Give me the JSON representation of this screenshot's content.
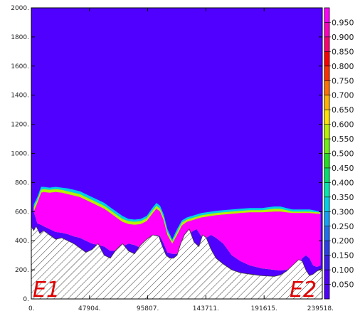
{
  "chart_data": {
    "type": "heatmap",
    "title": "",
    "xlabel": "",
    "ylabel": "",
    "xlim": [
      0,
      239518
    ],
    "ylim": [
      0,
      2000
    ],
    "x_ticks": [
      {
        "value": 0,
        "label": "0."
      },
      {
        "value": 47904,
        "label": "47904."
      },
      {
        "value": 95807,
        "label": "95807."
      },
      {
        "value": 143711,
        "label": "143711."
      },
      {
        "value": 191615,
        "label": "191615."
      },
      {
        "value": 239518,
        "label": "239518."
      }
    ],
    "y_ticks": [
      {
        "value": 0,
        "label": "0."
      },
      {
        "value": 200,
        "label": "200."
      },
      {
        "value": 400,
        "label": "400."
      },
      {
        "value": 600,
        "label": "600."
      },
      {
        "value": 800,
        "label": "800."
      },
      {
        "value": 1000,
        "label": "1000."
      },
      {
        "value": 1200,
        "label": "1200."
      },
      {
        "value": 1400,
        "label": "1400."
      },
      {
        "value": 1600,
        "label": "1600."
      },
      {
        "value": 1800,
        "label": "1800."
      },
      {
        "value": 2000,
        "label": "2000."
      }
    ],
    "background_value": 0.0,
    "end_labels": {
      "left": "E1",
      "right": "E2"
    },
    "colorbar": {
      "levels": [
        "0.050",
        "0.100",
        "0.150",
        "0.200",
        "0.250",
        "0.300",
        "0.350",
        "0.400",
        "0.450",
        "0.500",
        "0.550",
        "0.600",
        "0.650",
        "0.700",
        "0.750",
        "0.800",
        "0.850",
        "0.900",
        "0.950"
      ],
      "colors": [
        "#5000ff",
        "#3a1ef0",
        "#2a40e8",
        "#1e70f0",
        "#12a0f8",
        "#00d0e8",
        "#00e8b0",
        "#00e070",
        "#20e020",
        "#70ee10",
        "#b8f000",
        "#ffe000",
        "#ffb000",
        "#ff7000",
        "#ff3000",
        "#ff0000",
        "#ff0070",
        "#ff00c0",
        "#ff00ff"
      ],
      "min_color": "#5000ff"
    },
    "terrain": {
      "x": [
        0,
        2000,
        4000,
        7000,
        10000,
        15000,
        20000,
        25000,
        30000,
        35000,
        40000,
        45000,
        50000,
        55000,
        60000,
        65000,
        70000,
        75000,
        80000,
        85000,
        90000,
        95000,
        100000,
        105000,
        108000,
        111000,
        114000,
        117000,
        120000,
        123000,
        126000,
        130000,
        134000,
        138000,
        141000,
        144000,
        148000,
        152000,
        158000,
        165000,
        172000,
        180000,
        190000,
        200000,
        205000,
        210000,
        215000,
        220000,
        223000,
        226000,
        229000,
        232000,
        235000,
        239518
      ],
      "y": [
        500,
        470,
        500,
        450,
        470,
        440,
        410,
        420,
        400,
        380,
        350,
        320,
        340,
        380,
        300,
        280,
        340,
        380,
        330,
        310,
        370,
        410,
        440,
        430,
        360,
        300,
        280,
        280,
        300,
        380,
        440,
        480,
        390,
        360,
        440,
        420,
        340,
        280,
        240,
        200,
        180,
        170,
        160,
        155,
        165,
        190,
        230,
        270,
        260,
        200,
        160,
        170,
        190,
        210
      ],
      "fill": "#ffffff",
      "hatch_color": "#3a3a3a"
    },
    "bands": {
      "x": [
        2000,
        5000,
        8000,
        10000,
        15000,
        20000,
        25000,
        30000,
        35000,
        40000,
        45000,
        50000,
        55000,
        60000,
        65000,
        70000,
        75000,
        80000,
        85000,
        90000,
        95000,
        100000,
        103000,
        106000,
        109000,
        112000,
        116000,
        120000,
        124000,
        128000,
        132000,
        136000,
        140000,
        144000,
        148000,
        152000,
        158000,
        165000,
        172000,
        180000,
        190000,
        200000,
        205000,
        210000,
        215000,
        220000,
        223000,
        226000,
        229000,
        232000,
        235000,
        238000
      ],
      "bottom": [
        600,
        520,
        510,
        500,
        480,
        460,
        455,
        445,
        430,
        420,
        400,
        380,
        370,
        360,
        330,
        330,
        360,
        380,
        370,
        350,
        400,
        420,
        440,
        430,
        380,
        320,
        310,
        310,
        340,
        410,
        460,
        480,
        430,
        420,
        440,
        420,
        380,
        300,
        260,
        230,
        210,
        200,
        195,
        200,
        215,
        240,
        280,
        300,
        280,
        230,
        220,
        230
      ],
      "levels": [
        {
          "value": 0.05,
          "top": [
            680,
            720,
            790,
            790,
            780,
            785,
            780,
            775,
            770,
            760,
            740,
            720,
            700,
            680,
            650,
            620,
            590,
            570,
            560,
            565,
            590,
            650,
            680,
            660,
            600,
            500,
            430,
            500,
            560,
            580,
            590,
            600,
            610,
            615,
            615,
            620,
            630,
            630,
            640,
            640,
            640,
            650,
            650,
            640,
            630,
            630,
            630,
            630,
            630,
            625,
            620,
            615
          ]
        },
        {
          "value": 0.3,
          "top": [
            650,
            700,
            770,
            770,
            765,
            770,
            765,
            760,
            750,
            740,
            720,
            700,
            680,
            660,
            630,
            600,
            570,
            550,
            545,
            550,
            570,
            630,
            660,
            640,
            580,
            480,
            410,
            480,
            540,
            560,
            570,
            580,
            590,
            595,
            600,
            605,
            610,
            615,
            620,
            625,
            625,
            635,
            635,
            625,
            615,
            615,
            615,
            615,
            615,
            610,
            605,
            600
          ]
        },
        {
          "value": 0.55,
          "top": [
            630,
            680,
            750,
            755,
            750,
            755,
            750,
            740,
            730,
            720,
            700,
            680,
            660,
            640,
            610,
            580,
            550,
            535,
            530,
            535,
            555,
            610,
            640,
            620,
            560,
            460,
            395,
            460,
            525,
            545,
            555,
            565,
            575,
            580,
            585,
            590,
            595,
            600,
            605,
            610,
            610,
            620,
            620,
            610,
            600,
            600,
            600,
            600,
            600,
            598,
            596,
            594
          ]
        },
        {
          "value": 0.95,
          "top": [
            600,
            660,
            730,
            735,
            730,
            735,
            730,
            720,
            710,
            700,
            680,
            660,
            640,
            620,
            590,
            560,
            530,
            515,
            510,
            515,
            535,
            590,
            620,
            600,
            540,
            440,
            380,
            440,
            505,
            530,
            540,
            550,
            560,
            565,
            570,
            575,
            580,
            585,
            590,
            595,
            595,
            600,
            600,
            595,
            590,
            590,
            590,
            590,
            590,
            588,
            586,
            585
          ]
        }
      ]
    }
  }
}
